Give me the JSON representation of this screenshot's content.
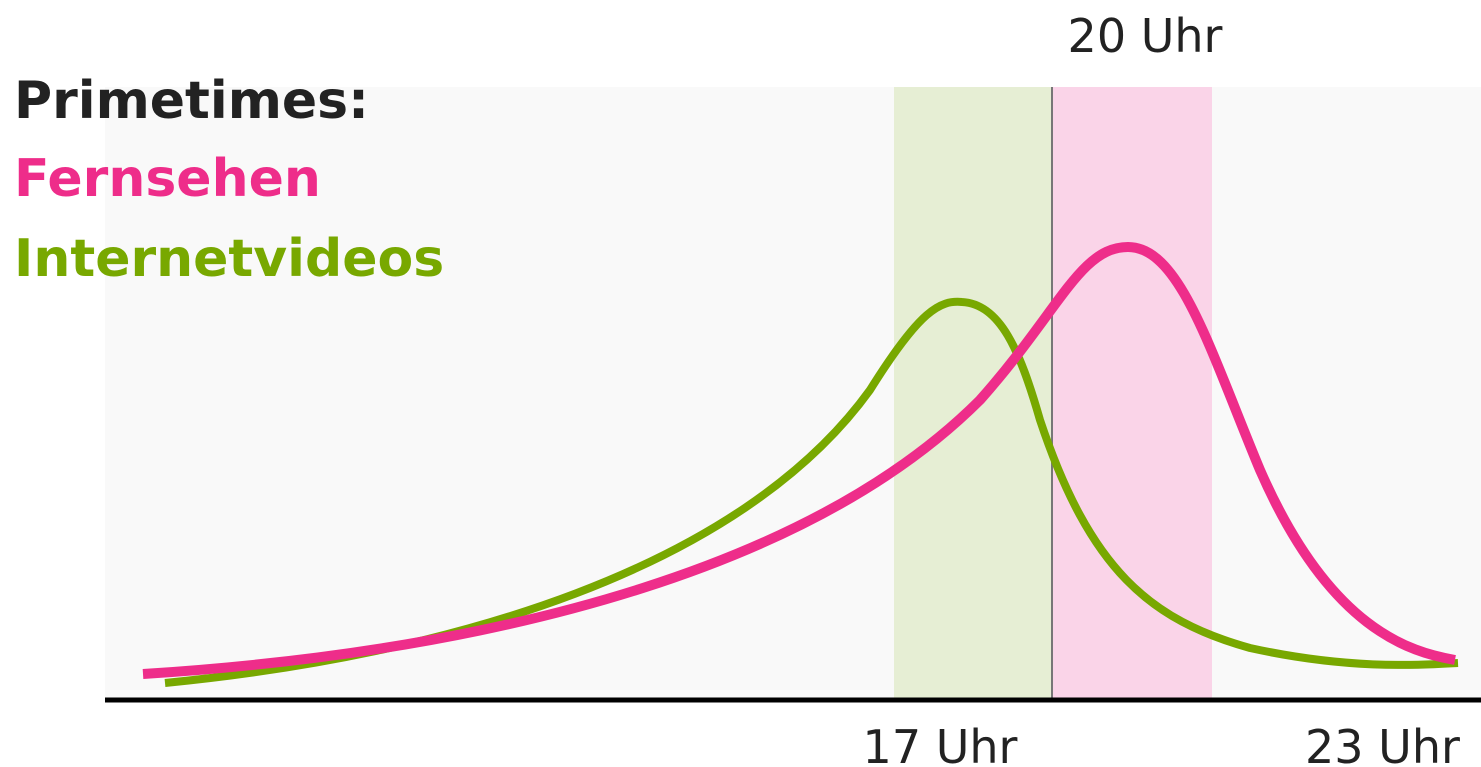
{
  "title": "Primetimes:",
  "legend": [
    "Fernsehen",
    "Internetvideos"
  ],
  "time_labels": {
    "top": "20 Uhr",
    "left": "17 Uhr",
    "right": "23 Uhr"
  }
}
